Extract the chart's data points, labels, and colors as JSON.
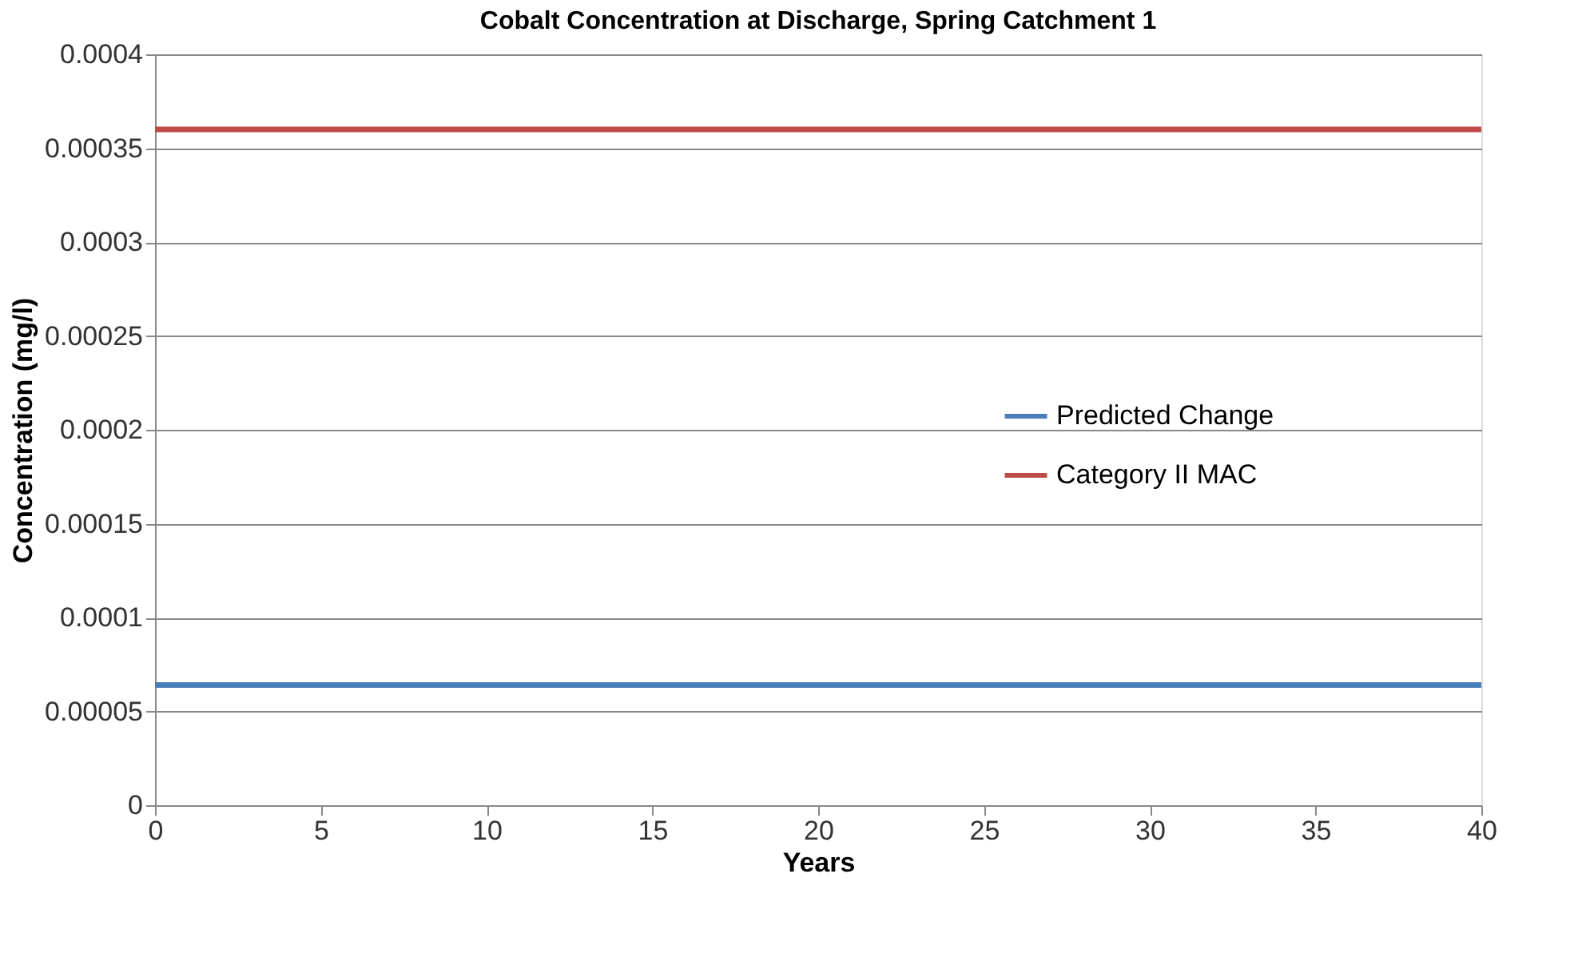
{
  "chart_data": {
    "type": "line",
    "title": "Cobalt Concentration at Discharge, Spring Catchment 1",
    "xlabel": "Years",
    "ylabel": "Concentration (mg/l)",
    "x": [
      0,
      40
    ],
    "series": [
      {
        "name": "Predicted Change",
        "color": "#4a7ebb",
        "values": [
          6.4e-05,
          6.4e-05
        ]
      },
      {
        "name": "Category II MAC",
        "color": "#be4b48",
        "values": [
          0.00036,
          0.00036
        ]
      }
    ],
    "xlim": [
      0,
      40
    ],
    "xticks": [
      0,
      5,
      10,
      15,
      20,
      25,
      30,
      35,
      40
    ],
    "ylim": [
      0,
      0.0004
    ],
    "yticks": [
      0,
      {
        "value": 5e-05,
        "label": "0.00005"
      },
      0.0001,
      0.00015,
      0.0002,
      0.00025,
      0.0003,
      0.00035,
      0.0004
    ],
    "grid": "y",
    "legend": "right",
    "marker": "none",
    "line_style": "solid"
  }
}
